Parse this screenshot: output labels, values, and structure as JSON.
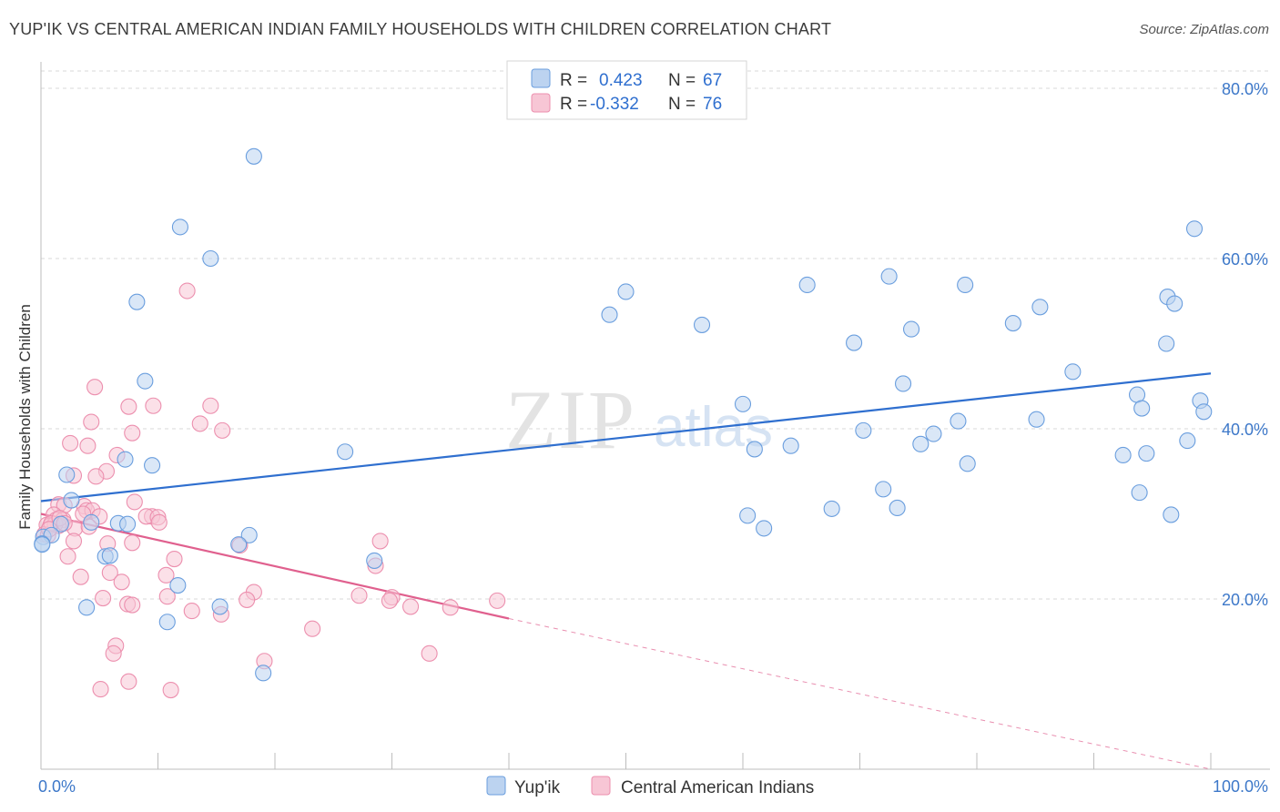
{
  "title": "YUP'IK VS CENTRAL AMERICAN INDIAN FAMILY HOUSEHOLDS WITH CHILDREN CORRELATION CHART",
  "source": "Source: ZipAtlas.com",
  "watermark": {
    "zip": "ZIP",
    "atlas": "atlas"
  },
  "colors": {
    "blue": "#6a9ede",
    "blue_fill": "#bcd3f0",
    "blue_line": "#2f6fcf",
    "pink": "#ec8fae",
    "pink_fill": "#f7c6d5",
    "pink_line": "#e0608e",
    "axis_text": "#3d78c9",
    "grid": "#d8d8d8"
  },
  "legend_top": {
    "rows": [
      {
        "r_label": "R =",
        "r_value": "0.423",
        "n_label": "N =",
        "n_value": "67"
      },
      {
        "r_label": "R =",
        "r_value": "-0.332",
        "n_label": "N =",
        "n_value": "76"
      }
    ]
  },
  "legend_bottom": {
    "series1": "Yup'ik",
    "series2": "Central American Indians"
  },
  "chart_data": {
    "type": "scatter",
    "xlabel": "",
    "ylabel": "Family Households with Children",
    "xlim": [
      0,
      100
    ],
    "ylim": [
      0,
      80
    ],
    "x_tick_labels": [
      "0.0%",
      "100.0%"
    ],
    "y_ticks": [
      20,
      40,
      60,
      80
    ],
    "y_tick_labels": [
      "20.0%",
      "40.0%",
      "60.0%",
      "80.0%"
    ],
    "grid": true,
    "series": [
      {
        "name": "Yup'ik",
        "points": [
          [
            18.2,
            72.0
          ],
          [
            11.9,
            63.7
          ],
          [
            14.5,
            60.0
          ],
          [
            8.2,
            54.9
          ],
          [
            98.6,
            63.5
          ],
          [
            50.0,
            56.1
          ],
          [
            65.5,
            56.9
          ],
          [
            72.5,
            57.9
          ],
          [
            79.0,
            56.9
          ],
          [
            48.6,
            53.4
          ],
          [
            56.5,
            52.2
          ],
          [
            74.4,
            51.7
          ],
          [
            83.1,
            52.4
          ],
          [
            85.4,
            54.3
          ],
          [
            96.3,
            55.5
          ],
          [
            96.9,
            54.7
          ],
          [
            69.5,
            50.1
          ],
          [
            96.2,
            50.0
          ],
          [
            8.9,
            45.6
          ],
          [
            88.2,
            46.7
          ],
          [
            73.7,
            45.3
          ],
          [
            93.7,
            44.0
          ],
          [
            99.1,
            43.3
          ],
          [
            60.0,
            42.9
          ],
          [
            94.1,
            42.4
          ],
          [
            99.4,
            42.0
          ],
          [
            78.4,
            40.9
          ],
          [
            85.1,
            41.1
          ],
          [
            70.3,
            39.8
          ],
          [
            76.3,
            39.4
          ],
          [
            98.0,
            38.6
          ],
          [
            64.1,
            38.0
          ],
          [
            75.2,
            38.2
          ],
          [
            61.0,
            37.6
          ],
          [
            26.0,
            37.3
          ],
          [
            92.5,
            36.9
          ],
          [
            94.5,
            37.1
          ],
          [
            7.2,
            36.4
          ],
          [
            9.5,
            35.7
          ],
          [
            79.2,
            35.9
          ],
          [
            2.2,
            34.6
          ],
          [
            72.0,
            32.9
          ],
          [
            93.9,
            32.5
          ],
          [
            2.6,
            31.6
          ],
          [
            67.6,
            30.6
          ],
          [
            73.2,
            30.7
          ],
          [
            60.4,
            29.8
          ],
          [
            96.6,
            29.9
          ],
          [
            1.7,
            28.8
          ],
          [
            4.3,
            29.0
          ],
          [
            6.6,
            28.9
          ],
          [
            7.4,
            28.8
          ],
          [
            61.8,
            28.3
          ],
          [
            0.2,
            27.3
          ],
          [
            0.9,
            27.5
          ],
          [
            17.8,
            27.5
          ],
          [
            16.9,
            26.4
          ],
          [
            0.1,
            26.5
          ],
          [
            5.5,
            25.0
          ],
          [
            5.9,
            25.1
          ],
          [
            28.5,
            24.5
          ],
          [
            11.7,
            21.6
          ],
          [
            3.9,
            19.0
          ],
          [
            15.3,
            19.1
          ],
          [
            10.8,
            17.3
          ],
          [
            19.0,
            11.3
          ],
          [
            0.1,
            26.4
          ]
        ],
        "trend": {
          "x": [
            0,
            100
          ],
          "y": [
            31.5,
            46.5
          ]
        }
      },
      {
        "name": "Central American Indians",
        "points": [
          [
            12.5,
            56.2
          ],
          [
            4.6,
            44.9
          ],
          [
            7.5,
            42.6
          ],
          [
            9.6,
            42.7
          ],
          [
            14.5,
            42.7
          ],
          [
            4.3,
            40.8
          ],
          [
            13.6,
            40.6
          ],
          [
            15.5,
            39.8
          ],
          [
            7.8,
            39.5
          ],
          [
            2.5,
            38.3
          ],
          [
            4.0,
            38.0
          ],
          [
            6.5,
            36.9
          ],
          [
            5.6,
            35.0
          ],
          [
            2.8,
            34.5
          ],
          [
            4.7,
            34.4
          ],
          [
            8.0,
            31.4
          ],
          [
            1.5,
            31.1
          ],
          [
            2.0,
            31.0
          ],
          [
            3.7,
            30.9
          ],
          [
            3.9,
            30.4
          ],
          [
            4.4,
            30.4
          ],
          [
            1.1,
            29.9
          ],
          [
            3.6,
            30.0
          ],
          [
            5.0,
            29.7
          ],
          [
            9.5,
            29.7
          ],
          [
            9.0,
            29.7
          ],
          [
            10.0,
            29.6
          ],
          [
            1.3,
            29.3
          ],
          [
            1.9,
            29.3
          ],
          [
            10.1,
            29.0
          ],
          [
            0.5,
            28.7
          ],
          [
            0.8,
            28.6
          ],
          [
            1.5,
            28.6
          ],
          [
            2.9,
            28.3
          ],
          [
            4.1,
            28.5
          ],
          [
            0.3,
            27.6
          ],
          [
            0.6,
            27.5
          ],
          [
            2.8,
            26.8
          ],
          [
            7.8,
            26.6
          ],
          [
            5.7,
            26.5
          ],
          [
            17.0,
            26.3
          ],
          [
            29.0,
            26.8
          ],
          [
            2.3,
            25.0
          ],
          [
            11.4,
            24.7
          ],
          [
            28.6,
            23.9
          ],
          [
            5.9,
            23.1
          ],
          [
            10.7,
            22.8
          ],
          [
            3.4,
            22.6
          ],
          [
            6.9,
            22.0
          ],
          [
            18.2,
            20.8
          ],
          [
            27.2,
            20.4
          ],
          [
            10.8,
            20.3
          ],
          [
            30.0,
            20.2
          ],
          [
            5.3,
            20.1
          ],
          [
            17.6,
            19.9
          ],
          [
            29.8,
            19.8
          ],
          [
            39.0,
            19.8
          ],
          [
            7.4,
            19.4
          ],
          [
            7.8,
            19.3
          ],
          [
            31.6,
            19.1
          ],
          [
            35.0,
            19.0
          ],
          [
            12.9,
            18.6
          ],
          [
            15.4,
            18.2
          ],
          [
            23.2,
            16.5
          ],
          [
            6.4,
            14.5
          ],
          [
            6.2,
            13.6
          ],
          [
            19.1,
            12.7
          ],
          [
            33.2,
            13.6
          ],
          [
            7.5,
            10.3
          ],
          [
            5.1,
            9.4
          ],
          [
            11.1,
            9.3
          ],
          [
            1.2,
            28.8
          ],
          [
            0.9,
            28.9
          ],
          [
            1.6,
            29.5
          ],
          [
            0.7,
            28.2
          ],
          [
            2.0,
            28.9
          ]
        ],
        "trend": {
          "x": [
            0,
            40
          ],
          "y": [
            30.0,
            17.7
          ]
        },
        "trend_dashed": {
          "x": [
            40,
            100
          ],
          "y": [
            17.7,
            0
          ]
        }
      }
    ]
  }
}
